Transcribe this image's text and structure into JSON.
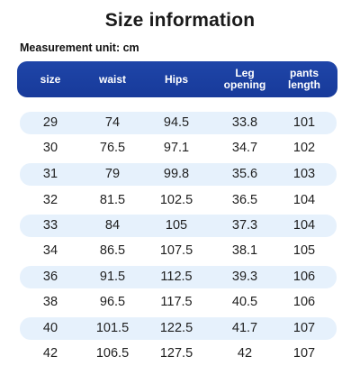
{
  "title": "Size information",
  "unit_label": "Measurement unit: cm",
  "columns": [
    "size",
    "waist",
    "Hips",
    "Leg\nopening",
    "pants\nlength"
  ],
  "rows": [
    [
      "29",
      "74",
      "94.5",
      "33.8",
      "101"
    ],
    [
      "30",
      "76.5",
      "97.1",
      "34.7",
      "102"
    ],
    [
      "31",
      "79",
      "99.8",
      "35.6",
      "103"
    ],
    [
      "32",
      "81.5",
      "102.5",
      "36.5",
      "104"
    ],
    [
      "33",
      "84",
      "105",
      "37.3",
      "104"
    ],
    [
      "34",
      "86.5",
      "107.5",
      "38.1",
      "105"
    ],
    [
      "36",
      "91.5",
      "112.5",
      "39.3",
      "106"
    ],
    [
      "38",
      "96.5",
      "117.5",
      "40.5",
      "106"
    ],
    [
      "40",
      "101.5",
      "122.5",
      "41.7",
      "107"
    ],
    [
      "42",
      "106.5",
      "127.5",
      "42",
      "107"
    ]
  ],
  "colors": {
    "header_bg": "#1c42a4",
    "header_text": "#ffffff",
    "row_shade": "#e6f1fc"
  }
}
